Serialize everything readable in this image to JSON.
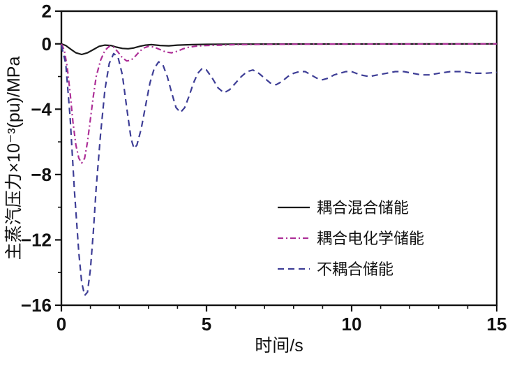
{
  "chart_data": {
    "type": "line",
    "title": "",
    "xlabel": "时间/s",
    "ylabel": "主蒸汽压力×10⁻³(pu)/MPa",
    "xlim": [
      0,
      15
    ],
    "ylim": [
      -16,
      2
    ],
    "xticks": [
      0,
      5,
      10,
      15
    ],
    "yticks": [
      2,
      0,
      -4,
      -8,
      -12,
      -16
    ],
    "xminor_step": 1,
    "yminor_step": 2,
    "grid": false,
    "legend_position": "inside-center-right",
    "axis_color": "#111111",
    "series": [
      {
        "id": "coupled-hybrid-storage",
        "name": "耦合混合储能",
        "color": "#1a1a1a",
        "dash": "solid",
        "points": [
          [
            0,
            0
          ],
          [
            0.15,
            -0.1
          ],
          [
            0.3,
            -0.3
          ],
          [
            0.5,
            -0.55
          ],
          [
            0.7,
            -0.65
          ],
          [
            0.9,
            -0.55
          ],
          [
            1.1,
            -0.35
          ],
          [
            1.3,
            -0.15
          ],
          [
            1.5,
            -0.08
          ],
          [
            1.7,
            -0.1
          ],
          [
            1.9,
            -0.2
          ],
          [
            2.1,
            -0.28
          ],
          [
            2.3,
            -0.3
          ],
          [
            2.5,
            -0.25
          ],
          [
            2.7,
            -0.15
          ],
          [
            2.9,
            -0.08
          ],
          [
            3.1,
            -0.05
          ],
          [
            3.4,
            -0.1
          ],
          [
            3.7,
            -0.12
          ],
          [
            4.0,
            -0.08
          ],
          [
            4.5,
            -0.05
          ],
          [
            5.0,
            -0.03
          ],
          [
            6.0,
            -0.02
          ],
          [
            8.0,
            -0.01
          ],
          [
            15,
            0
          ]
        ]
      },
      {
        "id": "coupled-electrochemical-storage",
        "name": "耦合电化学储能",
        "color": "#ad2f97",
        "dash": "dash-dot",
        "points": [
          [
            0,
            0
          ],
          [
            0.1,
            -0.4
          ],
          [
            0.2,
            -1.4
          ],
          [
            0.3,
            -3.0
          ],
          [
            0.4,
            -4.8
          ],
          [
            0.5,
            -6.2
          ],
          [
            0.6,
            -7.0
          ],
          [
            0.7,
            -7.3
          ],
          [
            0.8,
            -7.0
          ],
          [
            0.9,
            -6.0
          ],
          [
            1.0,
            -4.6
          ],
          [
            1.1,
            -3.2
          ],
          [
            1.2,
            -2.0
          ],
          [
            1.35,
            -1.0
          ],
          [
            1.5,
            -0.4
          ],
          [
            1.65,
            -0.15
          ],
          [
            1.8,
            -0.2
          ],
          [
            1.95,
            -0.5
          ],
          [
            2.1,
            -0.85
          ],
          [
            2.25,
            -1.05
          ],
          [
            2.4,
            -1.0
          ],
          [
            2.55,
            -0.75
          ],
          [
            2.7,
            -0.45
          ],
          [
            2.85,
            -0.25
          ],
          [
            3.0,
            -0.15
          ],
          [
            3.2,
            -0.2
          ],
          [
            3.4,
            -0.35
          ],
          [
            3.6,
            -0.5
          ],
          [
            3.8,
            -0.55
          ],
          [
            4.0,
            -0.45
          ],
          [
            4.2,
            -0.3
          ],
          [
            4.4,
            -0.2
          ],
          [
            4.6,
            -0.15
          ],
          [
            4.8,
            -0.12
          ],
          [
            5.0,
            -0.1
          ],
          [
            5.5,
            -0.08
          ],
          [
            6.0,
            -0.05
          ],
          [
            7.0,
            -0.03
          ],
          [
            8.0,
            -0.02
          ],
          [
            15,
            0
          ]
        ]
      },
      {
        "id": "uncoupled-storage",
        "name": "不耦合储能",
        "color": "#3e3e96",
        "dash": "dashed",
        "points": [
          [
            0,
            -0.1
          ],
          [
            0.15,
            -1.2
          ],
          [
            0.3,
            -4.5
          ],
          [
            0.45,
            -9.0
          ],
          [
            0.6,
            -12.8
          ],
          [
            0.7,
            -14.6
          ],
          [
            0.8,
            -15.4
          ],
          [
            0.9,
            -15.2
          ],
          [
            1.0,
            -13.8
          ],
          [
            1.1,
            -11.5
          ],
          [
            1.2,
            -8.8
          ],
          [
            1.35,
            -5.5
          ],
          [
            1.5,
            -2.8
          ],
          [
            1.65,
            -1.2
          ],
          [
            1.8,
            -0.6
          ],
          [
            1.95,
            -0.8
          ],
          [
            2.1,
            -1.9
          ],
          [
            2.25,
            -3.9
          ],
          [
            2.4,
            -5.8
          ],
          [
            2.5,
            -6.4
          ],
          [
            2.6,
            -6.2
          ],
          [
            2.75,
            -5.2
          ],
          [
            2.9,
            -3.8
          ],
          [
            3.05,
            -2.4
          ],
          [
            3.2,
            -1.5
          ],
          [
            3.35,
            -1.1
          ],
          [
            3.5,
            -1.3
          ],
          [
            3.65,
            -2.0
          ],
          [
            3.8,
            -3.0
          ],
          [
            3.95,
            -3.9
          ],
          [
            4.1,
            -4.2
          ],
          [
            4.25,
            -3.9
          ],
          [
            4.4,
            -3.2
          ],
          [
            4.55,
            -2.4
          ],
          [
            4.7,
            -1.8
          ],
          [
            4.85,
            -1.5
          ],
          [
            5.0,
            -1.6
          ],
          [
            5.2,
            -2.1
          ],
          [
            5.4,
            -2.7
          ],
          [
            5.6,
            -3.0
          ],
          [
            5.8,
            -2.8
          ],
          [
            6.0,
            -2.4
          ],
          [
            6.2,
            -2.0
          ],
          [
            6.4,
            -1.7
          ],
          [
            6.6,
            -1.6
          ],
          [
            6.8,
            -1.8
          ],
          [
            7.0,
            -2.1
          ],
          [
            7.2,
            -2.4
          ],
          [
            7.4,
            -2.5
          ],
          [
            7.6,
            -2.3
          ],
          [
            7.8,
            -2.0
          ],
          [
            8.0,
            -1.8
          ],
          [
            8.2,
            -1.7
          ],
          [
            8.4,
            -1.7
          ],
          [
            8.6,
            -1.9
          ],
          [
            8.8,
            -2.1
          ],
          [
            9.0,
            -2.2
          ],
          [
            9.2,
            -2.1
          ],
          [
            9.4,
            -1.9
          ],
          [
            9.6,
            -1.8
          ],
          [
            9.8,
            -1.7
          ],
          [
            10.0,
            -1.7
          ],
          [
            10.3,
            -1.9
          ],
          [
            10.6,
            -2.0
          ],
          [
            10.9,
            -1.9
          ],
          [
            11.2,
            -1.8
          ],
          [
            11.5,
            -1.7
          ],
          [
            11.8,
            -1.7
          ],
          [
            12.1,
            -1.8
          ],
          [
            12.4,
            -1.9
          ],
          [
            12.7,
            -1.9
          ],
          [
            13.0,
            -1.8
          ],
          [
            13.4,
            -1.7
          ],
          [
            13.8,
            -1.7
          ],
          [
            14.2,
            -1.8
          ],
          [
            14.6,
            -1.8
          ],
          [
            15.0,
            -1.75
          ]
        ]
      }
    ]
  }
}
